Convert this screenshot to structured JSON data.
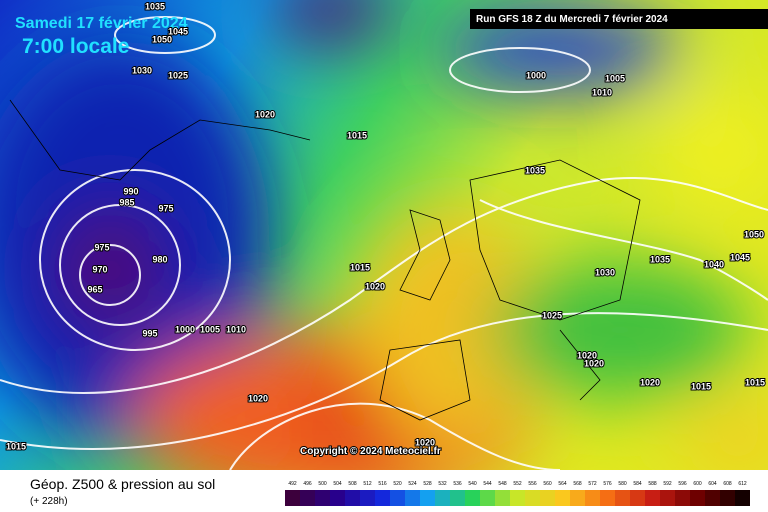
{
  "header": {
    "date": "Samedi 17 février 2024",
    "time": "7:00 locale",
    "run": "Run GFS 18 Z du Mercredi 7 février 2024"
  },
  "copyright": "Copyright © 2024 Meteociel.fr",
  "footer": {
    "title": "Géop. Z500 & pression au sol",
    "subtitle": "(+ 228h)"
  },
  "colorbar": [
    492,
    496,
    500,
    504,
    508,
    512,
    516,
    520,
    524,
    528,
    532,
    536,
    540,
    544,
    548,
    552,
    556,
    560,
    564,
    568,
    572,
    576,
    580,
    584,
    588,
    592,
    596,
    600,
    604,
    608,
    612
  ],
  "isobar_labels": [
    "1035",
    "1045",
    "1050",
    "1030",
    "1025",
    "1020",
    "1015",
    "1000",
    "1005",
    "1010",
    "990",
    "985",
    "975",
    "975",
    "980",
    "970",
    "965",
    "995",
    "1000",
    "1005",
    "1010",
    "1015",
    "1020",
    "1035",
    "1030",
    "1035",
    "1040",
    "1045",
    "1050",
    "1025",
    "1020",
    "1020",
    "1020",
    "1015",
    "1015",
    "1020",
    "1020",
    "1015"
  ]
}
